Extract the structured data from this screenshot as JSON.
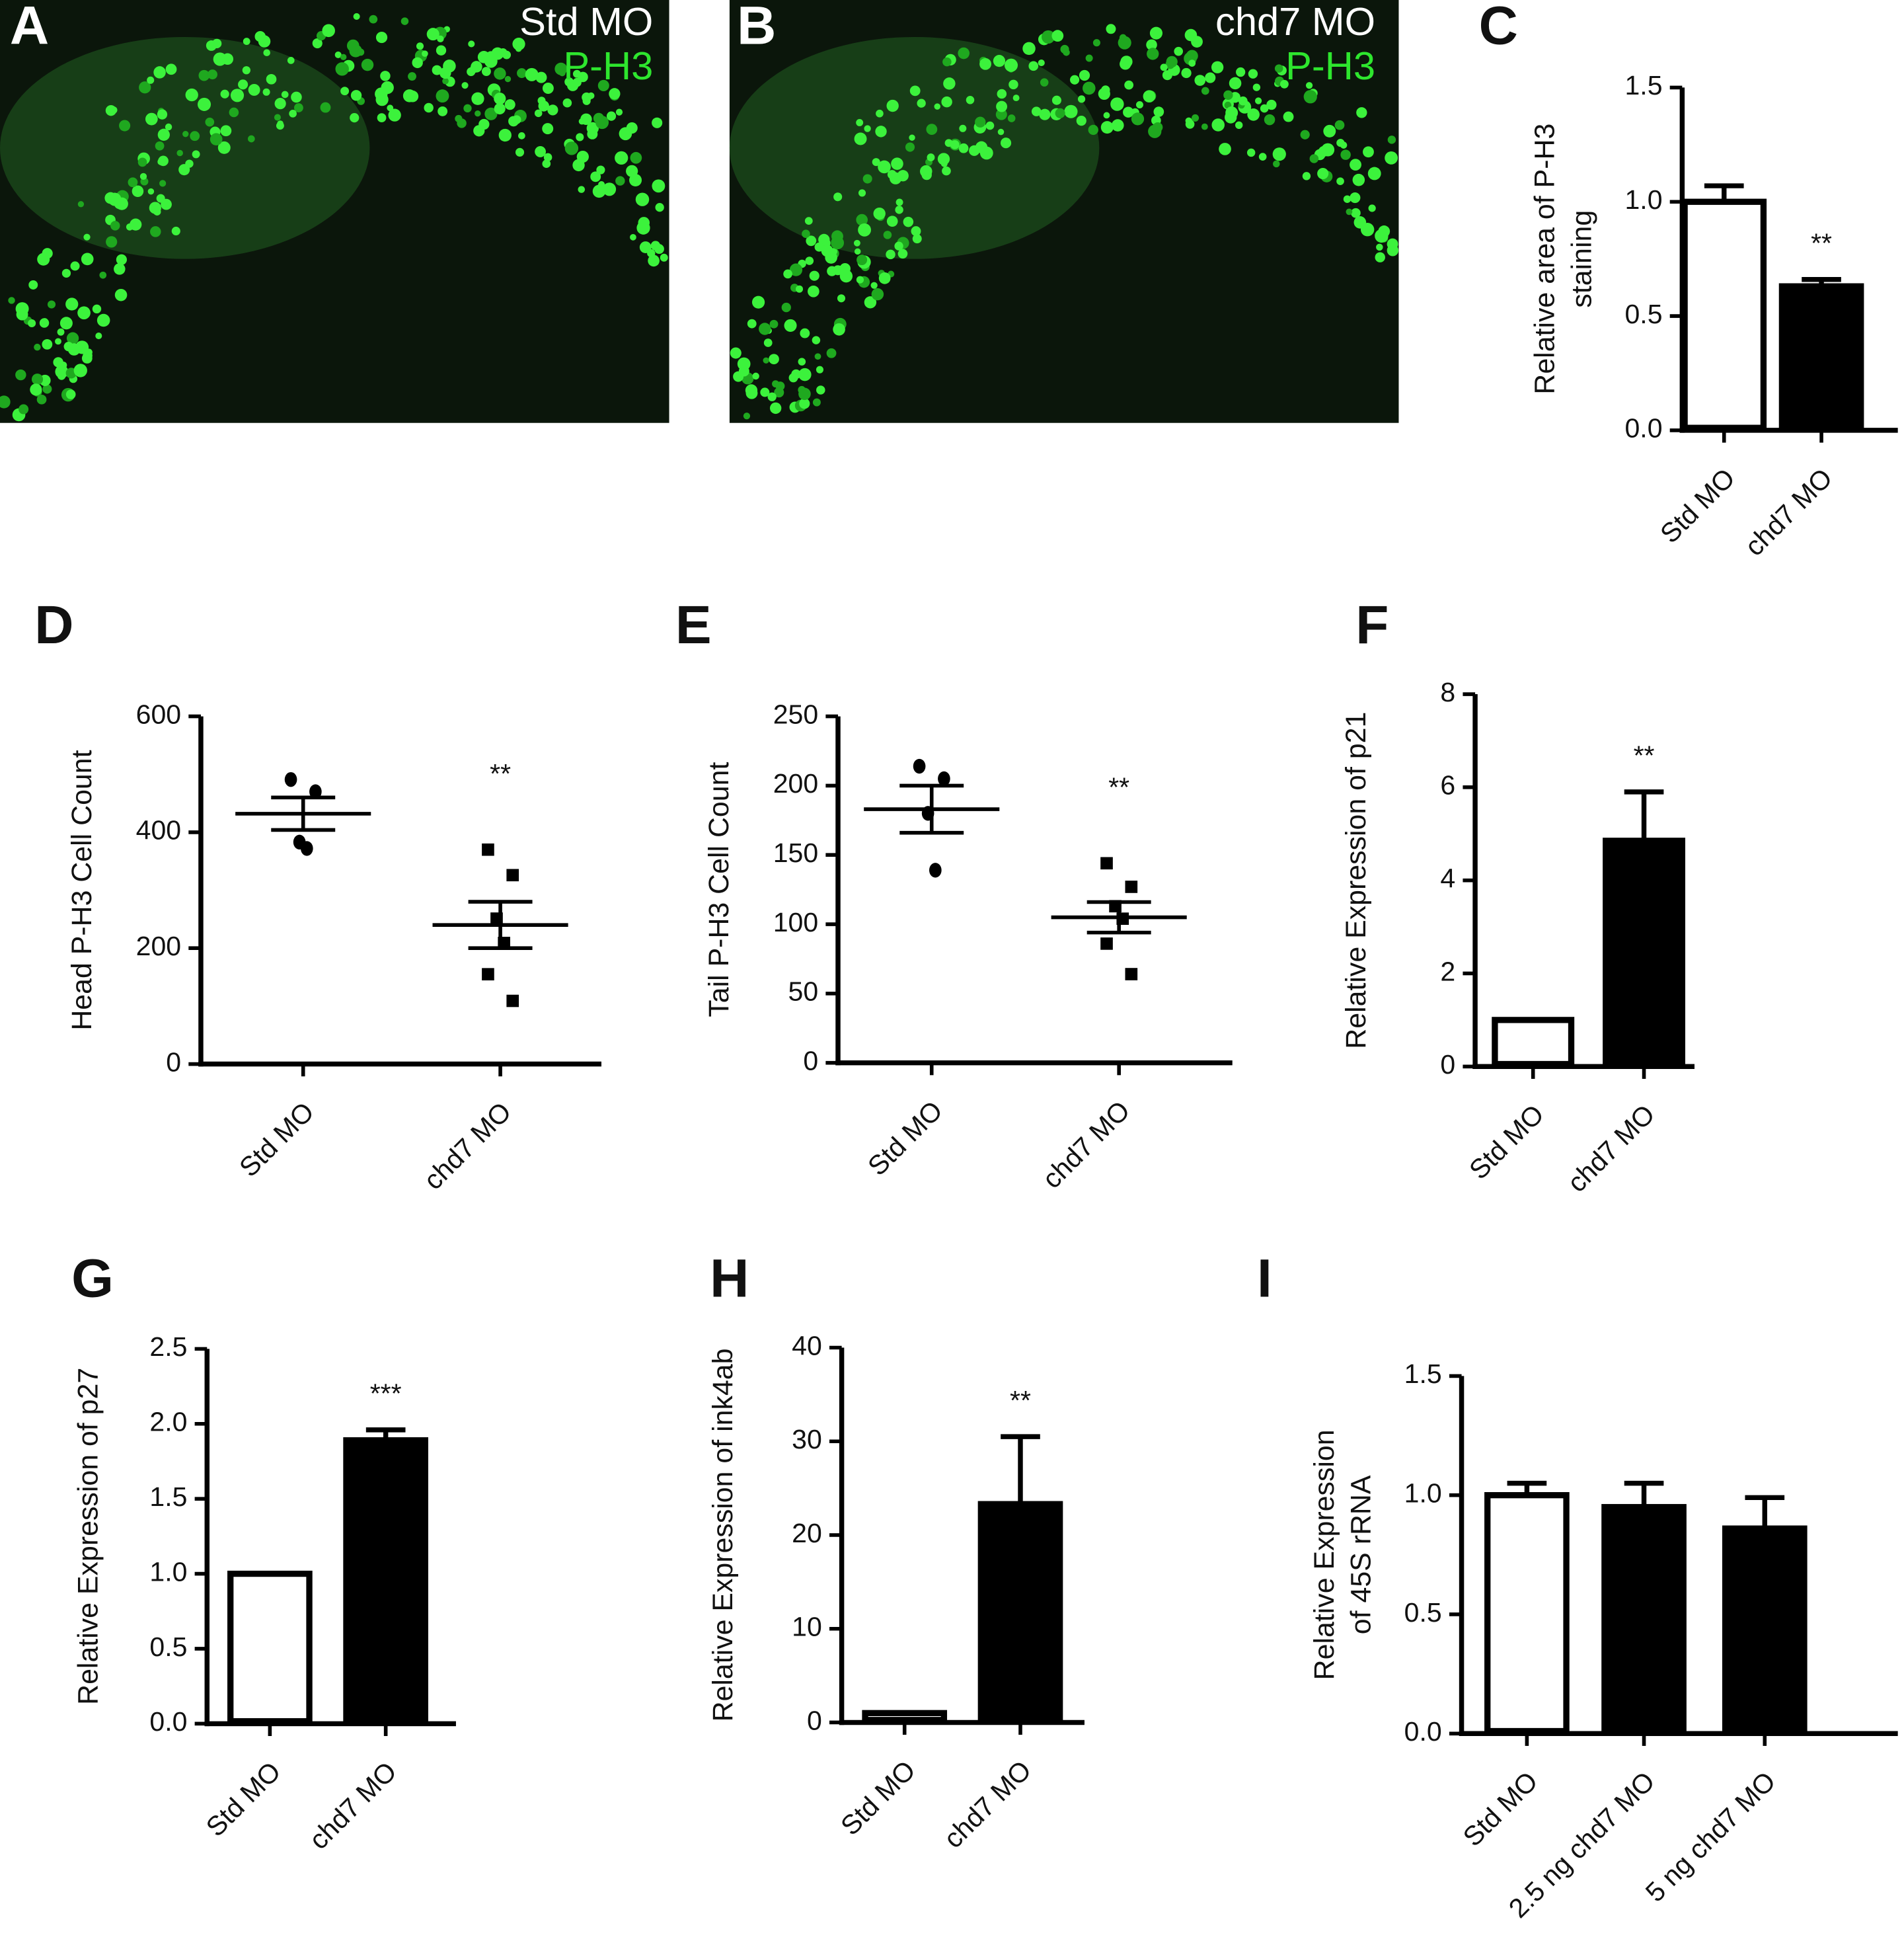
{
  "images": [
    {
      "letter": "A",
      "labels": [
        "Std MO",
        "P-H3"
      ]
    },
    {
      "letter": "B",
      "labels": [
        "chd7 MO",
        "P-H3"
      ]
    }
  ],
  "chart_data": [
    {
      "type": "bar",
      "label": "C",
      "ylabel": [
        "Relative area of P-H3",
        "staining"
      ],
      "categories": [
        "Std MO",
        "chd7 MO"
      ],
      "values": [
        1.0,
        0.63
      ],
      "errors": [
        0.07,
        0.03
      ],
      "colors": [
        "#ffffff",
        "#000000"
      ],
      "significance": [
        null,
        "**"
      ],
      "ylim": [
        0,
        1.5
      ],
      "yticks": [
        {
          "value": 0,
          "label": "0.0"
        },
        {
          "value": 0.5,
          "label": "0.5"
        },
        {
          "value": 1,
          "label": "1.0"
        },
        {
          "value": 1.5,
          "label": "1.5"
        }
      ]
    },
    {
      "type": "dot",
      "label": "D",
      "ylabel": "Head P-H3 Cell Count",
      "categories": [
        "Std MO",
        "chd7 MO"
      ],
      "markers": [
        "circle",
        "square"
      ],
      "points": [
        [
          491,
          470,
          383,
          372
        ],
        [
          370,
          326,
          251,
          209,
          155,
          109
        ]
      ],
      "means": [
        432,
        240
      ],
      "sems": [
        28,
        40
      ],
      "significance": [
        null,
        "**"
      ],
      "ylim": [
        0,
        600
      ],
      "yticks": [
        0,
        200,
        400,
        600
      ]
    },
    {
      "type": "dot",
      "label": "E",
      "ylabel": "Tail P-H3 Cell Count",
      "categories": [
        "Std MO",
        "chd7 MO"
      ],
      "markers": [
        "circle",
        "square"
      ],
      "points": [
        [
          214,
          205,
          180,
          139
        ],
        [
          144,
          127,
          113,
          104,
          86,
          64
        ]
      ],
      "means": [
        183,
        105
      ],
      "sems": [
        17,
        11
      ],
      "significance": [
        null,
        "**"
      ],
      "ylim": [
        0,
        250
      ],
      "yticks": [
        0,
        50,
        100,
        150,
        200,
        250
      ]
    },
    {
      "type": "bar",
      "label": "F",
      "ylabel": "Relative Expression of p21",
      "categories": [
        "Std MO",
        "chd7 MO"
      ],
      "values": [
        1,
        4.85
      ],
      "errors": [
        0,
        1.05
      ],
      "colors": [
        "#ffffff",
        "#000000"
      ],
      "significance": [
        null,
        "**"
      ],
      "ylim": [
        0,
        8
      ],
      "yticks": [
        0,
        2,
        4,
        6,
        8
      ]
    },
    {
      "type": "bar",
      "label": "G",
      "ylabel": "Relative Expression of p27",
      "categories": [
        "Std MO",
        "chd7 MO"
      ],
      "values": [
        1.0,
        1.89
      ],
      "errors": [
        0,
        0.07
      ],
      "colors": [
        "#ffffff",
        "#000000"
      ],
      "significance": [
        null,
        "***"
      ],
      "ylim": [
        0,
        2.5
      ],
      "yticks": [
        {
          "value": 0,
          "label": "0.0"
        },
        {
          "value": 0.5,
          "label": "0.5"
        },
        {
          "value": 1,
          "label": "1.0"
        },
        {
          "value": 1.5,
          "label": "1.5"
        },
        {
          "value": 2,
          "label": "2.0"
        },
        {
          "value": 2.5,
          "label": "2.5"
        }
      ]
    },
    {
      "type": "bar",
      "label": "H",
      "ylabel": "Relative Expression of ink4ab",
      "categories": [
        "Std MO",
        "chd7 MO"
      ],
      "values": [
        1,
        23.3
      ],
      "errors": [
        0,
        7.2
      ],
      "colors": [
        "#ffffff",
        "#000000"
      ],
      "significance": [
        null,
        "**"
      ],
      "ylim": [
        0,
        40
      ],
      "yticks": [
        0,
        10,
        20,
        30,
        40
      ]
    },
    {
      "type": "bar",
      "label": "I",
      "ylabel": [
        "Relative Expression",
        "of 45S rRNA"
      ],
      "categories": [
        "Std MO",
        "2.5 ng chd7 MO",
        "5 ng chd7 MO"
      ],
      "values": [
        1.0,
        0.95,
        0.86
      ],
      "errors": [
        0.05,
        0.1,
        0.13
      ],
      "colors": [
        "#ffffff",
        "#000000",
        "#000000"
      ],
      "significance": [
        null,
        null,
        null
      ],
      "ylim": [
        0,
        1.5
      ],
      "yticks": [
        {
          "value": 0,
          "label": "0.0"
        },
        {
          "value": 0.5,
          "label": "0.5"
        },
        {
          "value": 1,
          "label": "1.0"
        },
        {
          "value": 1.5,
          "label": "1.5"
        }
      ]
    }
  ]
}
